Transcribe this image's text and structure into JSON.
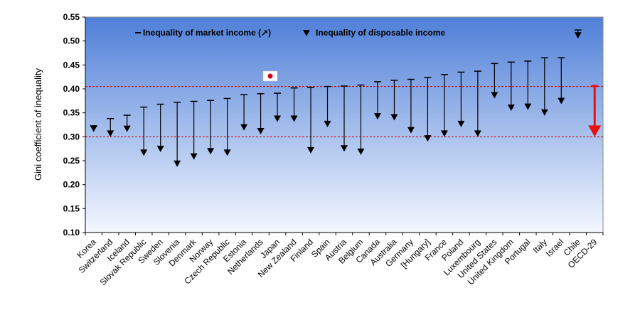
{
  "chart_data": {
    "type": "line",
    "title": "",
    "xlabel": "",
    "ylabel": "Gini coefficient of inequality",
    "ylim": [
      0.1,
      0.55
    ],
    "yticks": [
      "0.10",
      "0.15",
      "0.20",
      "0.25",
      "0.30",
      "0.35",
      "0.40",
      "0.45",
      "0.50",
      "0.55"
    ],
    "grid": false,
    "legend": {
      "placement": "top",
      "market_label": "Inequality of market income (↗)",
      "disposable_label": "Inequality of disposable income"
    },
    "reference_lines": [
      0.405,
      0.3
    ],
    "categories": [
      "Korea",
      "Switzerland",
      "Iceland",
      "Slovak Republic",
      "Sweden",
      "Slovenia",
      "Denmark",
      "Norway",
      "Czech Republic",
      "Estonia",
      "Netherlands",
      "Japan",
      "New Zealand",
      "Finland",
      "Spain",
      "Austria",
      "Belgium",
      "Canada",
      "Australia",
      "Germany",
      "[Hungary]",
      "France",
      "Poland",
      "Luxembourg",
      "United States",
      "United Kingdom",
      "Portugal",
      "Italy",
      "Israel",
      "Chile",
      "OECD-29"
    ],
    "series": [
      {
        "name": "Inequality of market income (↗)",
        "values": [
          0.323,
          0.338,
          0.345,
          0.362,
          0.368,
          0.372,
          0.374,
          0.376,
          0.38,
          0.388,
          0.39,
          0.391,
          0.402,
          0.403,
          0.405,
          0.406,
          0.408,
          0.415,
          0.418,
          0.42,
          0.424,
          0.43,
          0.435,
          0.437,
          0.453,
          0.456,
          0.458,
          0.465,
          0.465,
          0.523,
          0.406
        ]
      },
      {
        "name": "Inequality of disposable income",
        "values": [
          0.31,
          0.3,
          0.31,
          0.26,
          0.268,
          0.237,
          0.252,
          0.263,
          0.26,
          0.313,
          0.305,
          0.331,
          0.331,
          0.265,
          0.32,
          0.269,
          0.262,
          0.336,
          0.334,
          0.307,
          0.29,
          0.3,
          0.32,
          0.3,
          0.38,
          0.354,
          0.356,
          0.344,
          0.368,
          0.505,
          0.3
        ]
      }
    ],
    "highlight": {
      "category": "OECD-29",
      "color": "#e8100f"
    },
    "colors": {
      "plot_top": "#4f7fd8",
      "plot_bottom": "#f4f8ff",
      "reference_line": "#cc0000",
      "arrow": "#000000",
      "flag_red": "#d0001a"
    },
    "icons": {
      "japan_marker": "japan-flag-icon"
    }
  }
}
